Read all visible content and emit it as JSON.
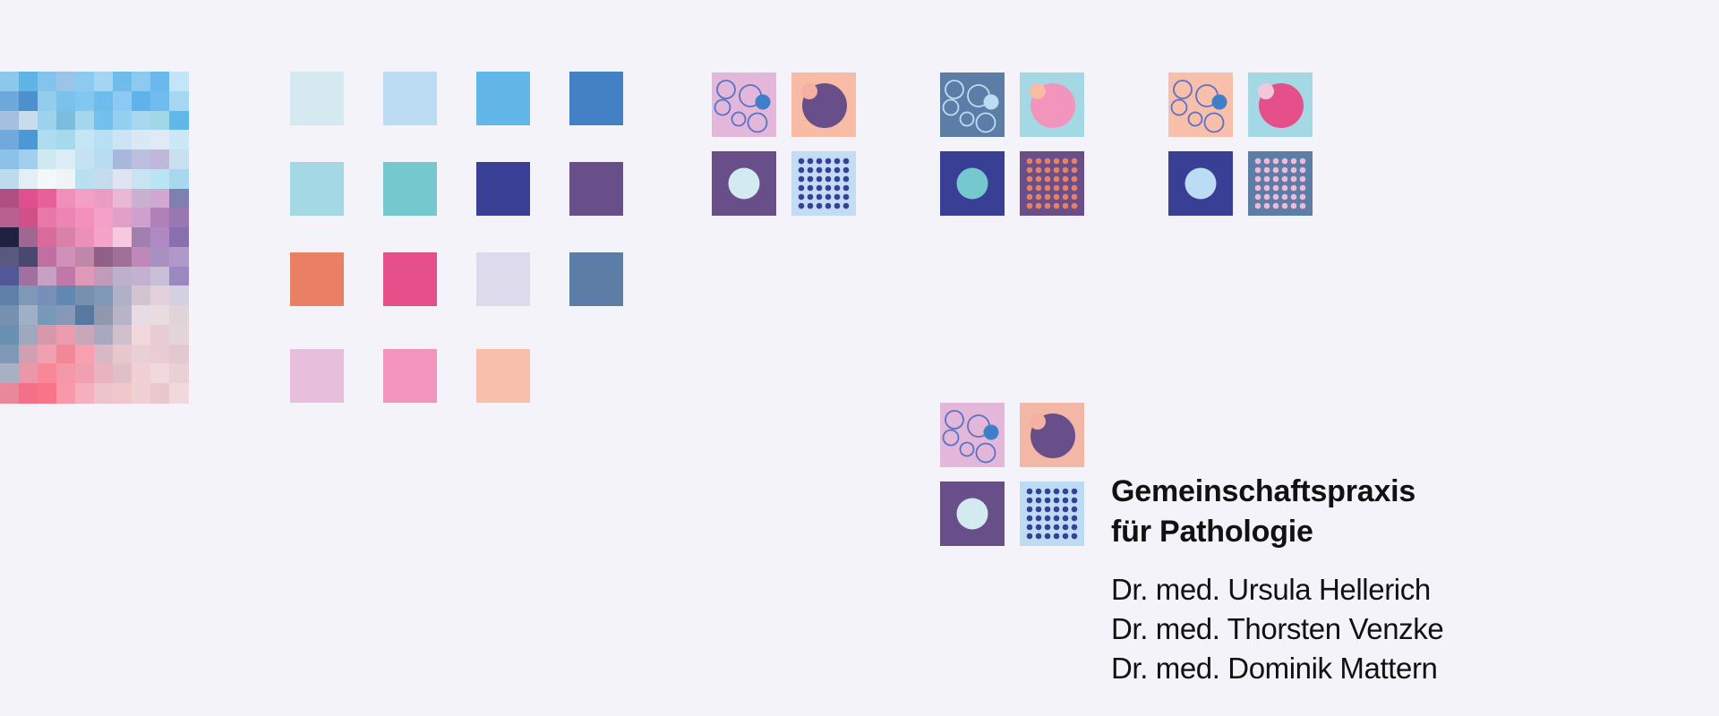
{
  "palette": {
    "background": "#f4f3f9",
    "swatches": [
      "#d4eaf0",
      "#bcdcf4",
      "#63b7e8",
      "#4480c4",
      "#a3d8e4",
      "#76c8cf",
      "#393f94",
      "#684f8a",
      "#e98064",
      "#e5508a",
      "#dcdaeb",
      "#5c7ea6",
      "#e7bfdc",
      "#f394bd",
      "#f8bfab"
    ]
  },
  "mosaic": {
    "cols": 10,
    "rows": 17,
    "colors": [
      "#8cc8ec",
      "#5fb4e6",
      "#84c4ec",
      "#9cc4e8",
      "#8ccaf0",
      "#a4d6f4",
      "#6ebcea",
      "#8ccaf0",
      "#6cb8ea",
      "#c4e4f8",
      "#6ca8dc",
      "#4c90d0",
      "#94ccee",
      "#78c2ec",
      "#80c8f0",
      "#6cbcee",
      "#8ccaf4",
      "#5eb4ea",
      "#70bcee",
      "#a6d6f2",
      "#a4c0e0",
      "#c8dcee",
      "#9cd2ec",
      "#7cbcde",
      "#a4d6ee",
      "#74c0ec",
      "#94cef0",
      "#a8d8f0",
      "#a0d8e8",
      "#60b8e8",
      "#70aadc",
      "#4c98d4",
      "#b0dcf0",
      "#a4daec",
      "#c4e6f4",
      "#b8e0f4",
      "#cce4f4",
      "#d8e8f4",
      "#e0eaf6",
      "#cce8f6",
      "#8cc2e8",
      "#a0d0ee",
      "#d0e8f0",
      "#dcecf4",
      "#c4e2f2",
      "#b8dcf0",
      "#a8b8dc",
      "#bcc0e0",
      "#c0b8dc",
      "#c8e0f0",
      "#bcdcee",
      "#e4eef4",
      "#f4f8fa",
      "#f0f4f6",
      "#b8e0f0",
      "#c4dcee",
      "#e0e4f2",
      "#c8e4f2",
      "#b8e4f4",
      "#a8d8ee",
      "#b05080",
      "#e05090",
      "#e8609a",
      "#f090b8",
      "#f4a0c4",
      "#ec9cc4",
      "#e8b8d4",
      "#c8b0d0",
      "#d0a8d0",
      "#8080b0",
      "#b86090",
      "#d05088",
      "#e878a8",
      "#ec84b4",
      "#f490bc",
      "#f4a0c8",
      "#e0a0c8",
      "#d0a0cc",
      "#b080b8",
      "#9878b0",
      "#202040",
      "#a06890",
      "#d86a9c",
      "#d882a8",
      "#ec90b8",
      "#f4a4c8",
      "#f8c8e0",
      "#a080b0",
      "#b088c4",
      "#8870b0",
      "#585880",
      "#484870",
      "#c070a0",
      "#d090b8",
      "#c088a8",
      "#906088",
      "#a07098",
      "#c088b8",
      "#a890c0",
      "#b098c8",
      "#505898",
      "#a070a0",
      "#c8a0c4",
      "#c078a8",
      "#e098b8",
      "#c09cb8",
      "#bcb0cc",
      "#c4b0d0",
      "#c8c0d8",
      "#9c88c0",
      "#6080a8",
      "#8098b8",
      "#7890b8",
      "#6088b0",
      "#7890b0",
      "#8098b8",
      "#b0b0c8",
      "#d4c4d0",
      "#e4d0dc",
      "#d4d0e0",
      "#7890b0",
      "#a0b0c8",
      "#7898b8",
      "#8898b8",
      "#5878a0",
      "#9098b0",
      "#b8b4c8",
      "#e8dce4",
      "#e8dce0",
      "#e0d4d8",
      "#6890b0",
      "#a0a8c0",
      "#d898ac",
      "#ec9cac",
      "#c8a8b8",
      "#a8a8c0",
      "#d0c0cc",
      "#f0d8dc",
      "#e8ccd4",
      "#e4d4dc",
      "#8098b8",
      "#d0a0b0",
      "#f0a0b0",
      "#f08898",
      "#f8a0b0",
      "#d8b8c4",
      "#e8c8cc",
      "#e8d0d4",
      "#ecccd4",
      "#e4c8d0",
      "#a8b0c4",
      "#e898a8",
      "#f88898",
      "#f498a8",
      "#f0a0b0",
      "#e8b4c0",
      "#e0c0c8",
      "#f0d0d4",
      "#f0d8dc",
      "#e8d0d4",
      "#e88898",
      "#f47088",
      "#f87488",
      "#f898a8",
      "#f4b0bc",
      "#ecc4cc",
      "#f0c8cc",
      "#f0d0d4",
      "#e8c8cc",
      "#f0d8dc"
    ]
  },
  "logos": [
    {
      "bubbles_bg": "#e3b7da",
      "ring": "#5a72c4",
      "ring_dot": "#3e7fca",
      "orb_bg": "#f7bba6",
      "orb": "#684f8a",
      "orb_dot": "#f3b0a3",
      "nucleus_bg": "#684f8a",
      "nucleus": "#d3eaf1",
      "dots_bg": "#c1dcf4",
      "dots": "#393f94"
    },
    {
      "bubbles_bg": "#5c7ea6",
      "ring": "#bcdcf4",
      "ring_dot": "#bcdcf4",
      "orb_bg": "#a3d8e4",
      "orb": "#f394bd",
      "orb_dot": "#f7bba6",
      "nucleus_bg": "#393f94",
      "nucleus": "#76c8cf",
      "dots_bg": "#684f8a",
      "dots": "#e98064"
    },
    {
      "bubbles_bg": "#f8bfab",
      "ring": "#5a72c4",
      "ring_dot": "#3e7fca",
      "orb_bg": "#a3d8e4",
      "orb": "#e5508a",
      "orb_dot": "#f3c6dc",
      "nucleus_bg": "#393f94",
      "nucleus": "#bcdcf4",
      "dots_bg": "#5c7ea6",
      "dots": "#f3b8d8"
    },
    {
      "bubbles_bg": "#e3b7da",
      "ring": "#5a72c4",
      "ring_dot": "#3e7fca",
      "orb_bg": "#f2b7a5",
      "orb": "#684f8a",
      "orb_dot": "#f3b0a3",
      "nucleus_bg": "#684f8a",
      "nucleus": "#d3eaf1",
      "dots_bg": "#bcdcf4",
      "dots": "#393f94"
    }
  ],
  "practice": {
    "name_line1": "Gemeinschaftspraxis",
    "name_line2": "für Pathologie",
    "doctors": [
      "Dr. med. Ursula Hellerich",
      "Dr. med. Thorsten Venzke",
      "Dr. med. Dominik Mattern"
    ]
  }
}
